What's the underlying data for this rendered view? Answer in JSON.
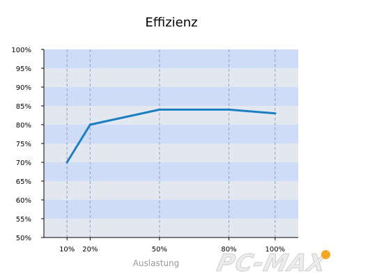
{
  "chart_data": {
    "type": "line",
    "title": "Effizienz",
    "xlabel": "Auslastung",
    "ylabel": "",
    "x": [
      10,
      20,
      50,
      80,
      100
    ],
    "x_tick_labels": [
      "10%",
      "20%",
      "50%",
      "80%",
      "100%"
    ],
    "series": [
      {
        "values": [
          70,
          80,
          84,
          84,
          83
        ]
      }
    ],
    "ylim": [
      50,
      100
    ],
    "xlim": [
      0,
      110
    ],
    "y_ticks": [
      50,
      55,
      60,
      65,
      70,
      75,
      80,
      85,
      90,
      95,
      100
    ],
    "y_tick_suffix": "%",
    "grid": "vertical dashed lines at x ticks, alternating horizontal bands",
    "colors": {
      "line": "#1a7fc1",
      "band_light": "#e3e7f0",
      "band_blue": "#cfdcf7",
      "grid": "#8aa0d0"
    }
  },
  "watermark": {
    "text": "PC-MAX",
    "icon": "orange-dot-icon"
  }
}
